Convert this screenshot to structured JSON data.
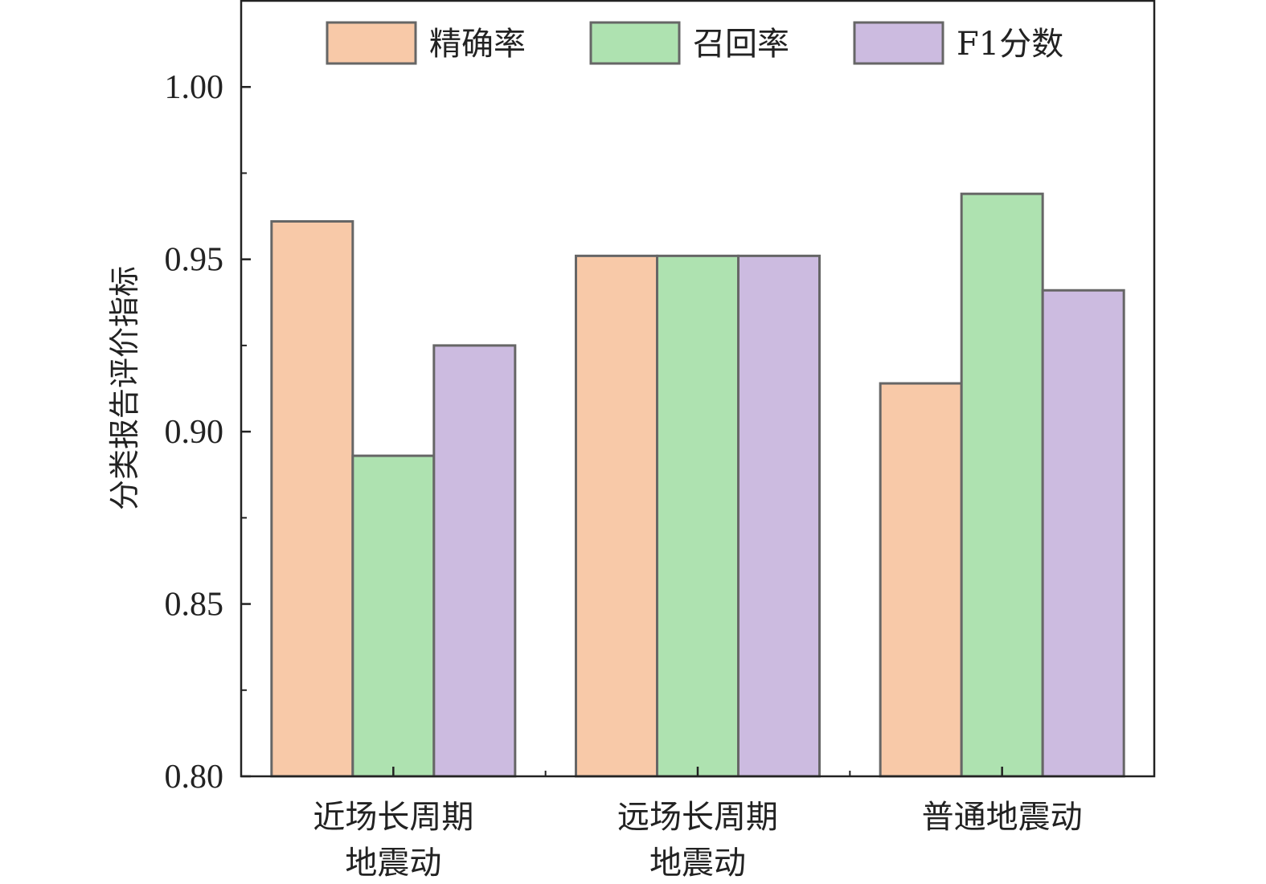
{
  "chart_data": {
    "type": "bar",
    "title": "",
    "xlabel": "",
    "ylabel": "分类报告评价指标",
    "ylim": [
      0.8,
      1.025
    ],
    "yticks": [
      "0.80",
      "0.85",
      "0.90",
      "0.95",
      "1.00"
    ],
    "grid": false,
    "legend_placement": "top",
    "categories": [
      [
        "近场长周期",
        "地震动"
      ],
      [
        "远场长周期",
        "地震动"
      ],
      [
        "普通地震动"
      ]
    ],
    "series": [
      {
        "name": "精确率",
        "color": "#F8C9A8",
        "values": [
          0.961,
          0.951,
          0.914
        ]
      },
      {
        "name": "召回率",
        "color": "#AEE2B0",
        "values": [
          0.893,
          0.951,
          0.969
        ]
      },
      {
        "name": "F1分数",
        "color": "#CCBBE0",
        "values": [
          0.925,
          0.951,
          0.941
        ]
      }
    ],
    "bar_edge_color": "#666666"
  }
}
